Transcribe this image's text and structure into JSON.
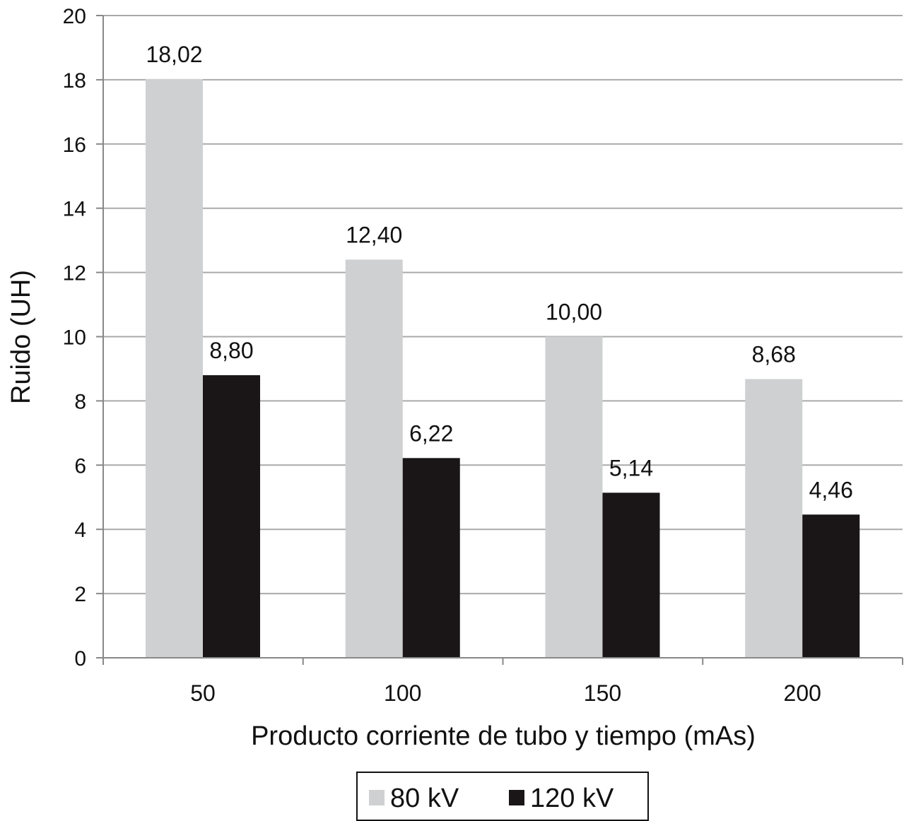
{
  "chart_data": {
    "type": "bar",
    "title": "",
    "xlabel": "Producto corriente de tubo y tiempo (mAs)",
    "ylabel": "Ruido (UH)",
    "categories": [
      "50",
      "100",
      "150",
      "200"
    ],
    "series": [
      {
        "name": "80 kV",
        "color": "#cfd0d1",
        "values": [
          18.02,
          12.4,
          10.0,
          8.68
        ],
        "labels": [
          "18,02",
          "12,40",
          "10,00",
          "8,68"
        ]
      },
      {
        "name": "120 kV",
        "color": "#1a1617",
        "values": [
          8.8,
          6.22,
          5.14,
          4.46
        ],
        "labels": [
          "8,80",
          "6,22",
          "5,14",
          "4,46"
        ]
      }
    ],
    "ylim": [
      0,
      20
    ],
    "yticks": [
      0,
      2,
      4,
      6,
      8,
      10,
      12,
      14,
      16,
      18,
      20
    ],
    "grid": true,
    "legend_position": "bottom"
  }
}
